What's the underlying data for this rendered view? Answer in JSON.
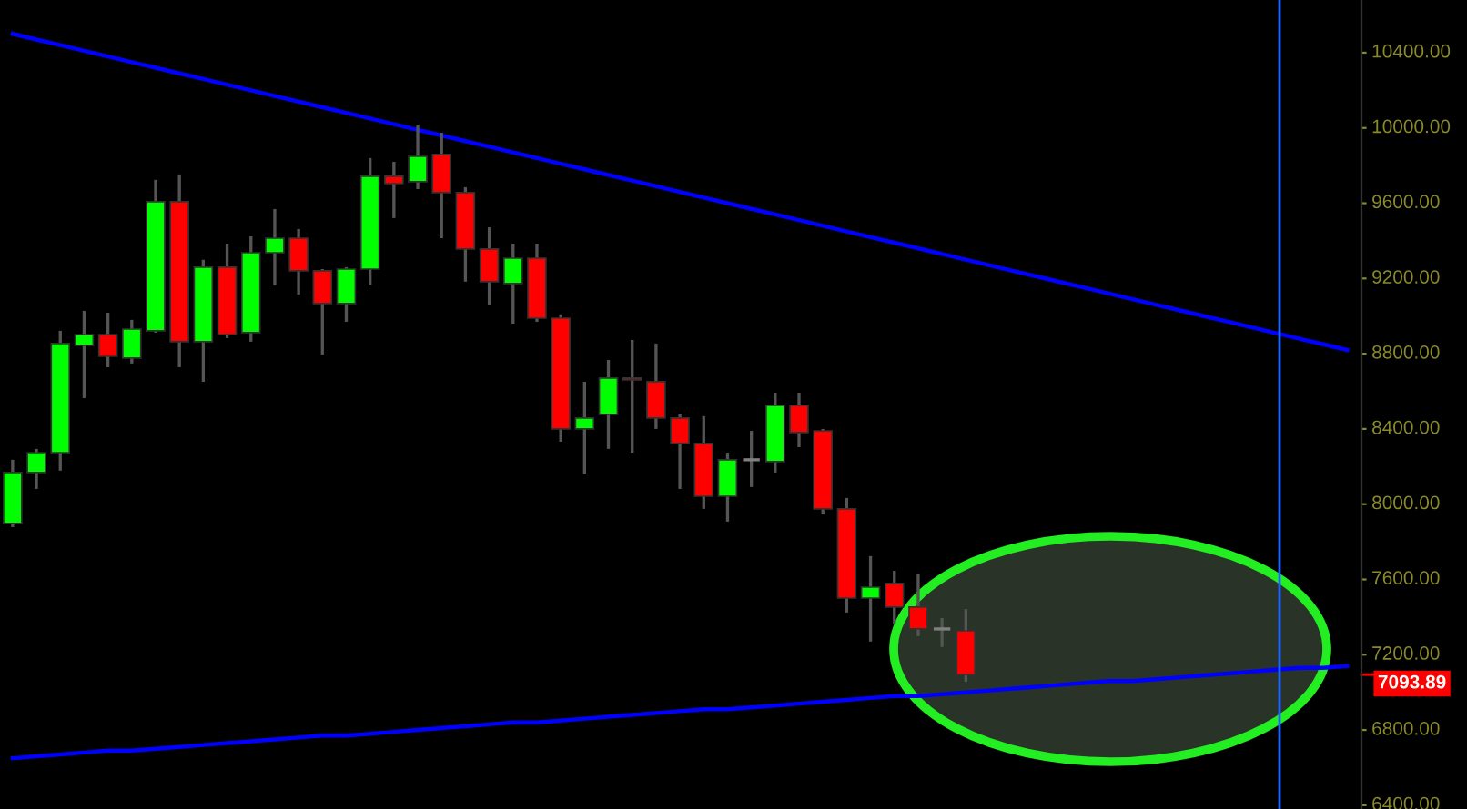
{
  "chart_data": {
    "type": "candlestick",
    "categories": [
      null,
      null,
      null,
      null,
      null,
      null,
      null,
      null,
      null,
      null,
      null,
      null,
      null,
      null,
      null,
      null,
      null,
      null,
      null,
      null,
      null,
      null,
      null,
      null,
      null,
      null,
      null,
      null,
      null,
      null,
      null,
      null,
      null,
      null,
      null,
      null,
      null,
      null,
      null,
      null,
      null,
      null,
      null,
      null,
      null,
      null,
      null,
      null,
      null,
      null,
      null,
      null,
      null,
      null,
      null,
      null,
      null
    ],
    "ohlc": [
      [
        7898,
        8236,
        7878,
        8168
      ],
      [
        8168,
        8294,
        8081,
        8274
      ],
      [
        8274,
        8922,
        8178,
        8854
      ],
      [
        8844,
        9028,
        8564,
        8902
      ],
      [
        8902,
        9018,
        8728,
        8786
      ],
      [
        8777,
        8980,
        8748,
        8931
      ],
      [
        8922,
        9724,
        8912,
        9608
      ],
      [
        9608,
        9753,
        8728,
        8864
      ],
      [
        8864,
        9299,
        8651,
        9260
      ],
      [
        9260,
        9385,
        8883,
        8902
      ],
      [
        8912,
        9424,
        8864,
        9337
      ],
      [
        9337,
        9569,
        9163,
        9414
      ],
      [
        9414,
        9463,
        9115,
        9241
      ],
      [
        9241,
        9250,
        8796,
        9067
      ],
      [
        9067,
        9260,
        8970,
        9250
      ],
      [
        9250,
        9840,
        9163,
        9743
      ],
      [
        9743,
        9820,
        9521,
        9704
      ],
      [
        9714,
        10014,
        9675,
        9849
      ],
      [
        9859,
        9975,
        9414,
        9656
      ],
      [
        9656,
        9685,
        9183,
        9357
      ],
      [
        9357,
        9472,
        9057,
        9183
      ],
      [
        9173,
        9385,
        8960,
        9308
      ],
      [
        9308,
        9385,
        8970,
        8989
      ],
      [
        8989,
        9009,
        8332,
        8400
      ],
      [
        8400,
        8651,
        8158,
        8458
      ],
      [
        8477,
        8767,
        8294,
        8671
      ],
      [
        8671,
        8873,
        8274,
        8661
      ],
      [
        8651,
        8854,
        8400,
        8458
      ],
      [
        8458,
        8477,
        8081,
        8323
      ],
      [
        8323,
        8468,
        7975,
        8042
      ],
      [
        8042,
        8274,
        7907,
        8236
      ],
      [
        8236,
        8390,
        8091,
        8236
      ],
      [
        8226,
        8593,
        8168,
        8526
      ],
      [
        8526,
        8593,
        8303,
        8381
      ],
      [
        8390,
        8400,
        7946,
        7975
      ],
      [
        7975,
        8033,
        7424,
        7501
      ],
      [
        7501,
        7724,
        7270,
        7559
      ],
      [
        7579,
        7646,
        7366,
        7453
      ],
      [
        7453,
        7627,
        7299,
        7337
      ],
      [
        7337,
        7395,
        7241,
        7337
      ],
      [
        7327,
        7443,
        7057,
        7094
      ],
      null,
      null,
      null,
      null,
      null,
      null,
      null,
      null,
      null,
      null,
      null,
      null,
      null,
      null,
      null,
      null
    ],
    "colors": [
      "#00ff00",
      "#00ff00",
      "#00ff00",
      "#00ff00",
      "#ff0000",
      "#00ff00",
      "#00ff00",
      "#ff0000",
      "#00ff00",
      "#ff0000",
      "#00ff00",
      "#00ff00",
      "#ff0000",
      "#ff0000",
      "#00ff00",
      "#00ff00",
      "#ff0000",
      "#00ff00",
      "#ff0000",
      "#ff0000",
      "#ff0000",
      "#00ff00",
      "#ff0000",
      "#ff0000",
      "#00ff00",
      "#00ff00",
      "#ff0000",
      "#ff0000",
      "#ff0000",
      "#ff0000",
      "#00ff00",
      "#808080",
      "#00ff00",
      "#ff0000",
      "#ff0000",
      "#ff0000",
      "#00ff00",
      "#ff0000",
      "#ff0000",
      "#808080",
      "#ff0000",
      null,
      null,
      null,
      null,
      null,
      null,
      null,
      null,
      null,
      null,
      null,
      null,
      null,
      null,
      null,
      null
    ],
    "series": [
      {
        "type": "line",
        "color": "#0000ff",
        "values": [
          10500,
          10470,
          10440,
          10410,
          10380,
          10350,
          10320,
          10290,
          10260,
          10230,
          10200,
          10170,
          10140,
          10110,
          10080,
          10050,
          10020,
          9990,
          9960,
          9930,
          9900,
          9870,
          9840,
          9810,
          9780,
          9750,
          9720,
          9690,
          9660,
          9630,
          9600,
          9570,
          9540,
          9510,
          9480,
          9450,
          9420,
          9390,
          9360,
          9330,
          9300,
          9270,
          9240,
          9210,
          9180,
          9150,
          9120,
          9090,
          9060,
          9030,
          9000,
          8970,
          8940,
          8910,
          8880,
          8850,
          8820
        ]
      },
      {
        "type": "line",
        "color": "#0000ff",
        "values": [
          6650,
          6660,
          6670,
          6680,
          6690,
          6690,
          6700,
          6710,
          6720,
          6730,
          6740,
          6750,
          6760,
          6770,
          6770,
          6780,
          6790,
          6800,
          6810,
          6820,
          6830,
          6840,
          6840,
          6850,
          6860,
          6870,
          6880,
          6890,
          6900,
          6910,
          6910,
          6920,
          6930,
          6940,
          6950,
          6960,
          6970,
          6980,
          6980,
          6990,
          7000,
          7010,
          7020,
          7030,
          7040,
          7050,
          7060,
          7060,
          7070,
          7080,
          7090,
          7100,
          7110,
          7120,
          7130,
          7130,
          7140
        ]
      }
    ],
    "annotations": [
      "7093.89"
    ],
    "ylim": [
      6380,
      10680
    ],
    "yticks": [
      {
        "value": 6400,
        "label": "6400.00"
      },
      {
        "value": 6800,
        "label": "6800.00"
      },
      {
        "value": 7200,
        "label": "7200.00"
      },
      {
        "value": 7600,
        "label": "7600.00"
      },
      {
        "value": 8000,
        "label": "8000.00"
      },
      {
        "value": 8400,
        "label": "8400.00"
      },
      {
        "value": 8800,
        "label": "8800.00"
      },
      {
        "value": 9200,
        "label": "9200.00"
      },
      {
        "value": 9600,
        "label": "9600.00"
      },
      {
        "value": 10000,
        "label": "10000.00"
      },
      {
        "value": 10400,
        "label": "10400.00"
      }
    ],
    "tick_labels": "y"
  }
}
